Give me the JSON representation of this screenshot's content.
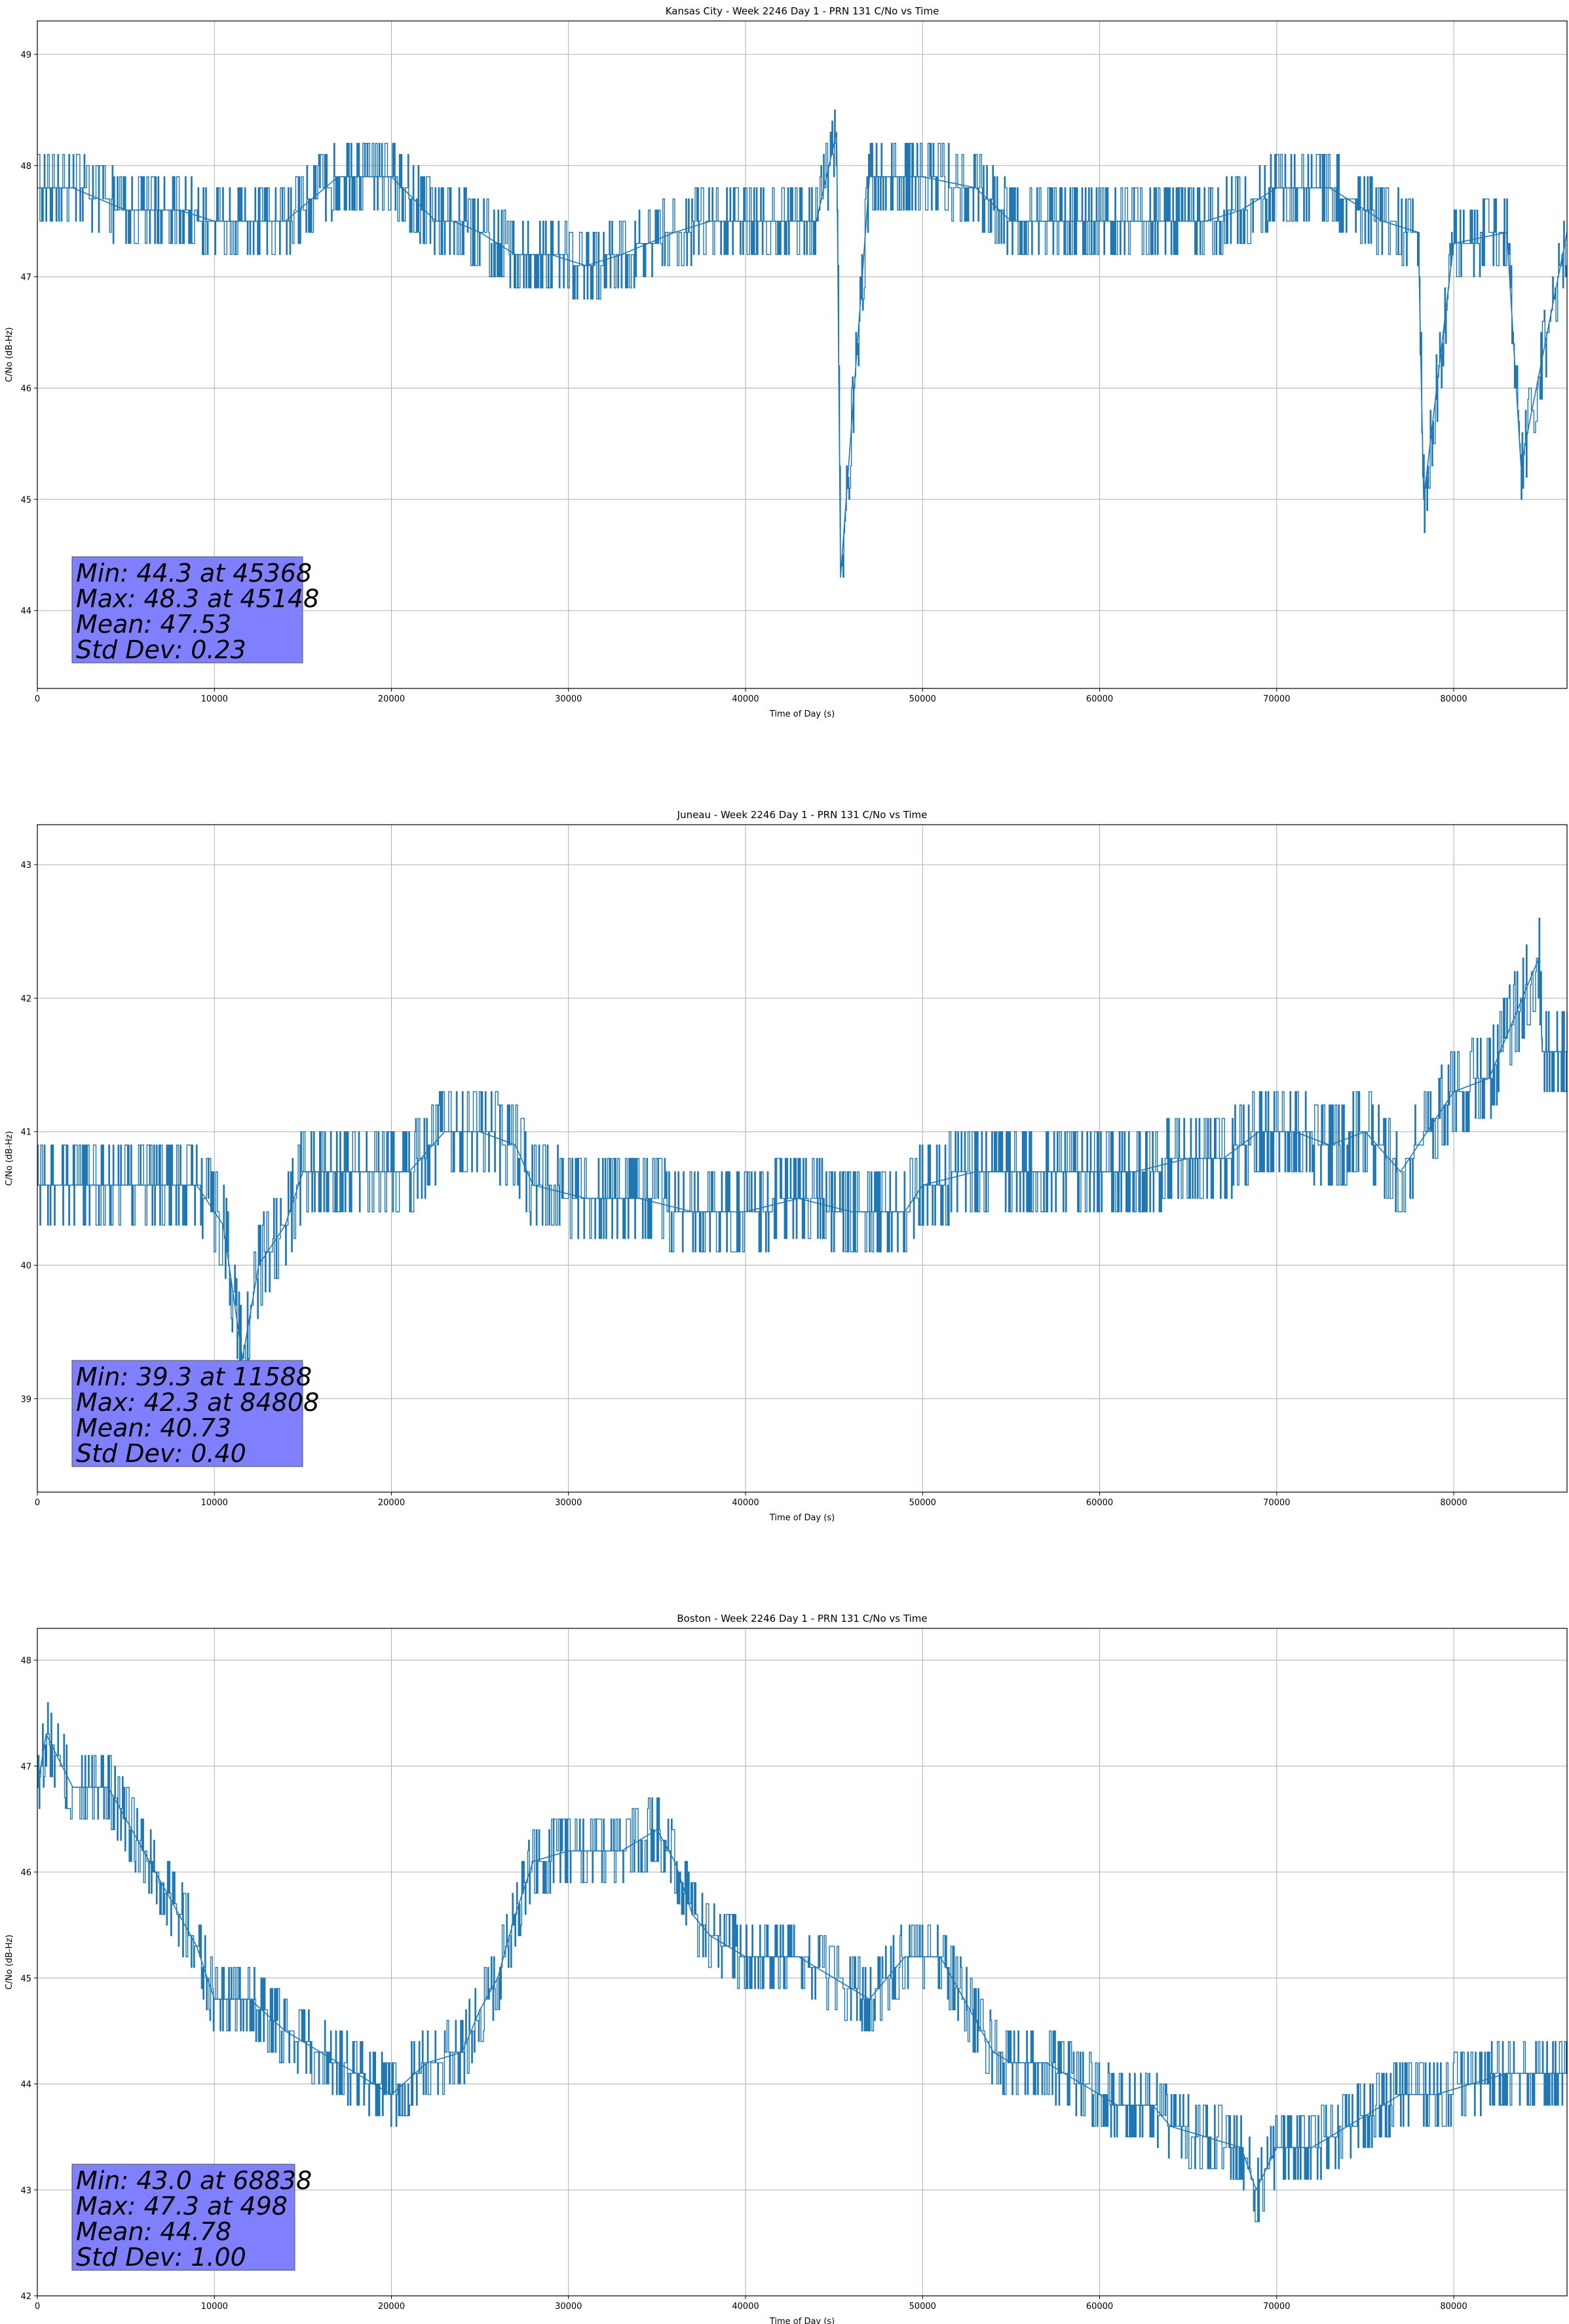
{
  "chart_data": [
    {
      "type": "line",
      "title": "Kansas City - Week 2246 Day 1 - PRN 131 C/No vs Time",
      "xlabel": "Time of Day (s)",
      "ylabel": "C/No (dB-Hz)",
      "xlim": [
        0,
        86400
      ],
      "ylim": [
        43.3,
        49.3
      ],
      "xticks": [
        0,
        10000,
        20000,
        30000,
        40000,
        50000,
        60000,
        70000,
        80000
      ],
      "yticks": [
        44,
        45,
        46,
        47,
        48,
        49
      ],
      "grid": true,
      "color": "#1f77b4",
      "series": [
        {
          "x": [
            0,
            2000,
            5000,
            8000,
            10000,
            14000,
            17000,
            20000,
            22500,
            23500,
            25000,
            27000,
            29000,
            31000,
            33000,
            36000,
            38000,
            40000,
            44000,
            45148,
            45368,
            47000,
            50000,
            53000,
            55000,
            58000,
            62000,
            66000,
            68000,
            70000,
            73000,
            75000,
            76000,
            78000,
            78300,
            80000,
            83000,
            83800,
            86400
          ],
          "y": [
            47.8,
            47.8,
            47.6,
            47.6,
            47.5,
            47.5,
            47.9,
            47.9,
            47.5,
            47.5,
            47.4,
            47.2,
            47.2,
            47.1,
            47.2,
            47.4,
            47.5,
            47.5,
            47.5,
            48.3,
            44.3,
            47.9,
            47.9,
            47.8,
            47.5,
            47.5,
            47.5,
            47.5,
            47.6,
            47.8,
            47.8,
            47.6,
            47.5,
            47.4,
            45.0,
            47.3,
            47.4,
            45.3,
            47.4
          ]
        }
      ],
      "stats": {
        "min": "Min: 44.3 at 45368",
        "max": "Max: 48.3 at 45148",
        "mean": "Mean: 47.53",
        "std": "Std Dev: 0.23"
      }
    },
    {
      "type": "line",
      "title": "Juneau - Week 2246 Day 1 - PRN 131 C/No vs Time",
      "xlabel": "Time of Day (s)",
      "ylabel": "C/No (dB-Hz)",
      "xlim": [
        0,
        86400
      ],
      "ylim": [
        38.3,
        43.3
      ],
      "xticks": [
        0,
        10000,
        20000,
        30000,
        40000,
        50000,
        60000,
        70000,
        80000
      ],
      "yticks": [
        39,
        40,
        41,
        42,
        43
      ],
      "grid": true,
      "color": "#1f77b4",
      "series": [
        {
          "x": [
            0,
            3000,
            6000,
            9000,
            10500,
            11588,
            12500,
            14000,
            15000,
            18000,
            21000,
            23000,
            25000,
            27000,
            28000,
            31000,
            34000,
            37000,
            40000,
            43000,
            46000,
            49000,
            50000,
            53000,
            56000,
            59000,
            62000,
            65000,
            67000,
            69000,
            71000,
            73000,
            75000,
            77000,
            78000,
            80000,
            82000,
            84808,
            85000,
            86400
          ],
          "y": [
            40.6,
            40.6,
            40.6,
            40.6,
            40.3,
            39.3,
            40.0,
            40.3,
            40.7,
            40.7,
            40.7,
            41.0,
            41.0,
            40.9,
            40.6,
            40.5,
            40.5,
            40.4,
            40.4,
            40.5,
            40.4,
            40.4,
            40.6,
            40.7,
            40.7,
            40.7,
            40.7,
            40.8,
            40.8,
            41.0,
            41.0,
            40.9,
            41.0,
            40.7,
            40.9,
            41.3,
            41.4,
            42.3,
            41.6,
            41.6
          ]
        }
      ],
      "stats": {
        "min": "Min: 39.3 at 11588",
        "max": "Max: 42.3 at 84808",
        "mean": "Mean: 40.73",
        "std": "Std Dev: 0.40"
      }
    },
    {
      "type": "line",
      "title": "Boston - Week 2246 Day 1 - PRN 131 C/No vs Time",
      "xlabel": "Time of Day (s)",
      "ylabel": "C/No (dB-Hz)",
      "xlim": [
        0,
        86400
      ],
      "ylim": [
        42.0,
        48.3
      ],
      "xticks": [
        0,
        10000,
        20000,
        30000,
        40000,
        50000,
        60000,
        70000,
        80000
      ],
      "yticks": [
        42,
        43,
        44,
        45,
        46,
        47,
        48
      ],
      "grid": true,
      "color": "#1f77b4",
      "series": [
        {
          "x": [
            0,
            498,
            2000,
            4000,
            5000,
            6000,
            7000,
            8000,
            9000,
            10000,
            12000,
            14000,
            16000,
            18000,
            20000,
            22000,
            24000,
            25000,
            26000,
            27000,
            28000,
            30000,
            33000,
            35000,
            36000,
            37000,
            38000,
            40000,
            42000,
            43000,
            45000,
            47000,
            49000,
            51000,
            52000,
            53000,
            54000,
            55000,
            57000,
            59000,
            61000,
            63000,
            64000,
            66000,
            68000,
            68838,
            70000,
            72000,
            74000,
            75000,
            77000,
            79000,
            81000,
            83000,
            85000,
            86400
          ],
          "y": [
            46.8,
            47.3,
            46.8,
            46.8,
            46.5,
            46.2,
            45.9,
            45.6,
            45.3,
            44.8,
            44.8,
            44.5,
            44.3,
            44.1,
            43.9,
            44.2,
            44.3,
            44.7,
            45.0,
            45.6,
            46.1,
            46.2,
            46.2,
            46.4,
            46.1,
            45.6,
            45.4,
            45.2,
            45.2,
            45.2,
            45.0,
            44.8,
            45.2,
            45.2,
            44.9,
            44.6,
            44.3,
            44.2,
            44.2,
            44.0,
            43.8,
            43.8,
            43.6,
            43.5,
            43.4,
            43.0,
            43.4,
            43.4,
            43.6,
            43.7,
            43.9,
            43.9,
            44.0,
            44.1,
            44.1,
            44.1
          ]
        }
      ],
      "stats": {
        "min": "Min: 43.0 at 68838",
        "max": "Max: 47.3 at 498",
        "mean": "Mean: 44.78",
        "std": "Std Dev: 1.00"
      }
    }
  ]
}
